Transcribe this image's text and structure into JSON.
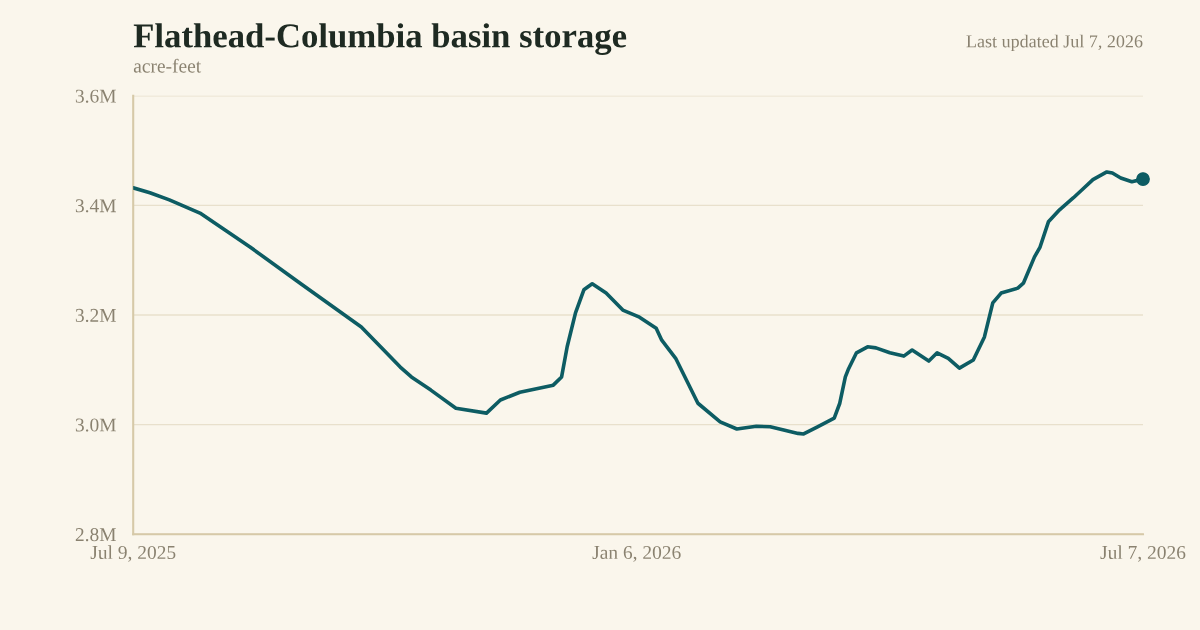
{
  "chart_data": {
    "type": "line",
    "title": "Flathead-Columbia basin storage",
    "subtitle": "acre-feet",
    "annotations": [
      "Last updated Jul 7, 2026"
    ],
    "x": [
      "2025-07-09",
      "2025-07-15",
      "2025-07-22",
      "2025-08-02",
      "2025-08-20",
      "2025-09-07",
      "2025-09-29",
      "2025-10-13",
      "2025-10-17",
      "2025-10-24",
      "2025-11-02",
      "2025-11-13",
      "2025-11-18",
      "2025-11-25",
      "2025-12-07",
      "2025-12-10",
      "2025-12-12",
      "2025-12-15",
      "2025-12-18",
      "2025-12-21",
      "2025-12-26",
      "2026-01-01",
      "2026-01-07",
      "2026-01-13",
      "2026-01-15",
      "2026-01-20",
      "2026-01-28",
      "2026-02-05",
      "2026-02-11",
      "2026-02-18",
      "2026-02-23",
      "2026-03-05",
      "2026-03-07",
      "2026-03-12",
      "2026-03-18",
      "2026-03-20",
      "2026-03-22",
      "2026-03-23",
      "2026-03-26",
      "2026-03-30",
      "2026-04-02",
      "2026-04-07",
      "2026-04-12",
      "2026-04-15",
      "2026-04-21",
      "2026-04-24",
      "2026-04-28",
      "2026-05-02",
      "2026-05-07",
      "2026-05-11",
      "2026-05-14",
      "2026-05-17",
      "2026-05-23",
      "2026-05-25",
      "2026-05-29",
      "2026-05-31",
      "2026-06-03",
      "2026-06-07",
      "2026-06-12",
      "2026-06-15",
      "2026-06-19",
      "2026-06-24",
      "2026-06-26",
      "2026-06-29",
      "2026-07-03",
      "2026-07-07"
    ],
    "series": [
      {
        "color": "#0d5c63",
        "values": [
          3432000,
          3423000,
          3410000,
          3386000,
          3324000,
          3258000,
          3178000,
          3105000,
          3087000,
          3063000,
          3030000,
          3021000,
          3045000,
          3059000,
          3072000,
          3087000,
          3142000,
          3204000,
          3246000,
          3257000,
          3240000,
          3209000,
          3196000,
          3176000,
          3154000,
          3121000,
          3039000,
          3005000,
          2992000,
          2997000,
          2996000,
          2984000,
          2983000,
          2996000,
          3012000,
          3039000,
          3087000,
          3100000,
          3131000,
          3142000,
          3140000,
          3131000,
          3125000,
          3136000,
          3116000,
          3131000,
          3121000,
          3103000,
          3118000,
          3160000,
          3222000,
          3240000,
          3249000,
          3258000,
          3306000,
          3324000,
          3370000,
          3392000,
          3414000,
          3428000,
          3447000,
          3461000,
          3459000,
          3450000,
          3443000,
          3448000
        ]
      }
    ],
    "xlim": [
      "2025-07-09",
      "2026-07-07"
    ],
    "xticks": [
      {
        "value": "2025-07-09",
        "label": "Jul 9, 2025"
      },
      {
        "value": "2026-01-06",
        "label": "Jan 6, 2026"
      },
      {
        "value": "2026-07-07",
        "label": "Jul 7, 2026"
      }
    ],
    "ylim": [
      2800000,
      3600000
    ],
    "yticks": [
      {
        "value": 2800000,
        "label": "2.8M"
      },
      {
        "value": 3000000,
        "label": "3.0M"
      },
      {
        "value": 3200000,
        "label": "3.2M"
      },
      {
        "value": 3400000,
        "label": "3.4M"
      },
      {
        "value": 3600000,
        "label": "3.6M"
      }
    ],
    "grid": "y",
    "marker": "none",
    "line_style": "solid"
  }
}
